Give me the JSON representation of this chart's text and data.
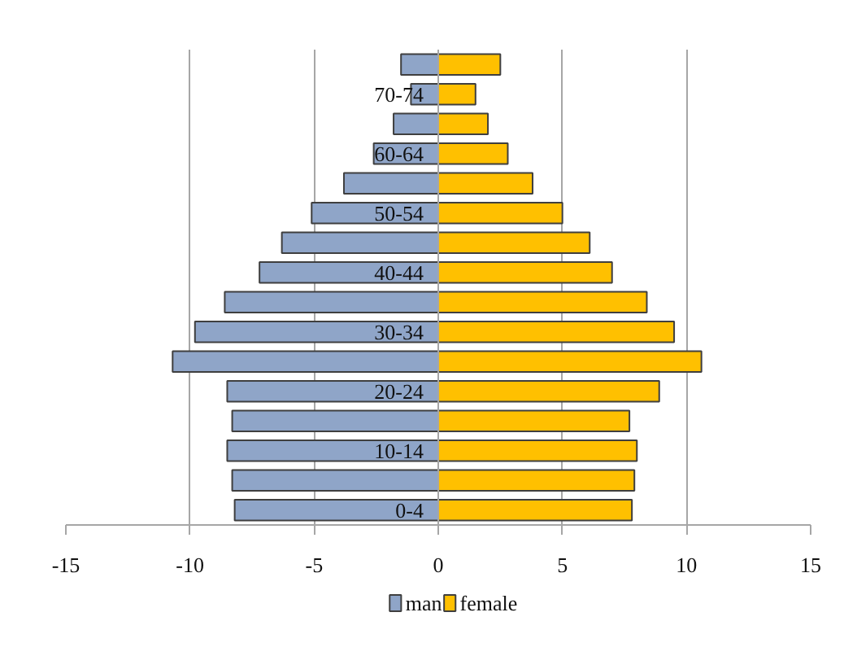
{
  "chart_data": {
    "type": "bar",
    "orientation": "horizontal",
    "stacked": true,
    "categories": [
      null,
      "70-74",
      null,
      "60-64",
      null,
      "50-54",
      null,
      "40-44",
      null,
      "30-34",
      null,
      "20-24",
      null,
      "10-14",
      null,
      "0-4"
    ],
    "series": [
      {
        "name": "man",
        "color": "#8fa5c8",
        "values": [
          -1.5,
          -1.1,
          -1.8,
          -2.6,
          -3.8,
          -5.1,
          -6.3,
          -7.2,
          -8.6,
          -9.8,
          -10.7,
          -8.5,
          -8.3,
          -8.5,
          -8.3,
          -8.2
        ]
      },
      {
        "name": "female",
        "color": "#ffc000",
        "values": [
          2.5,
          1.5,
          2.0,
          2.8,
          3.8,
          5.0,
          6.1,
          7.0,
          8.4,
          9.5,
          10.6,
          8.9,
          7.7,
          8.0,
          7.9,
          7.8
        ]
      }
    ],
    "xlim": [
      -15,
      15
    ],
    "xticks": [
      -15,
      -10,
      -5,
      0,
      5,
      10,
      15
    ],
    "grid": "x",
    "legend": "bottom"
  }
}
